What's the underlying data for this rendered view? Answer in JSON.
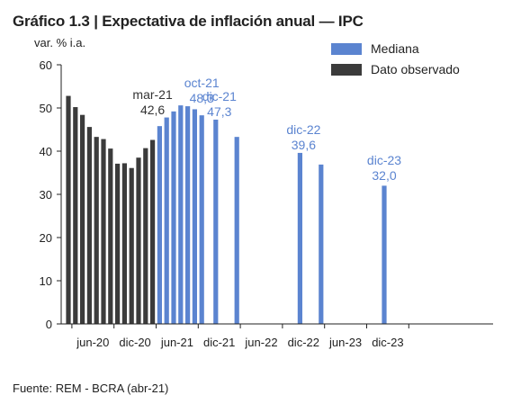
{
  "title": "Gráfico 1.3 | Expectativa de inflación anual — IPC",
  "source": "Fuente: REM - BCRA (abr-21)",
  "colors": {
    "observed": "#3b3b3b",
    "median": "#5b84d0",
    "axis": "#222222",
    "median_text": "#5b84d0",
    "observed_text": "#333333"
  },
  "chart_data": {
    "type": "bar",
    "ylabel": "var. % i.a.",
    "ylim": [
      0,
      60
    ],
    "yticks": [
      0,
      10,
      20,
      30,
      40,
      50,
      60
    ],
    "xtick_labels": [
      "jun-20",
      "dic-20",
      "jun-21",
      "dic-21",
      "jun-22",
      "dic-22",
      "jun-23",
      "dic-23"
    ],
    "legend": {
      "position": "top-right",
      "entries": [
        "Mediana",
        "Dato observado"
      ]
    },
    "series": [
      {
        "name": "Dato observado",
        "points": [
          {
            "x": "mar-20",
            "y": 52.8
          },
          {
            "x": "abr-20",
            "y": 50.2
          },
          {
            "x": "may-20",
            "y": 48.4
          },
          {
            "x": "jun-20",
            "y": 45.6
          },
          {
            "x": "jul-20",
            "y": 43.3
          },
          {
            "x": "ago-20",
            "y": 42.8
          },
          {
            "x": "sep-20",
            "y": 40.6
          },
          {
            "x": "oct-20",
            "y": 37.1
          },
          {
            "x": "nov-20",
            "y": 37.2
          },
          {
            "x": "dic-20",
            "y": 36.1
          },
          {
            "x": "ene-21",
            "y": 38.5
          },
          {
            "x": "feb-21",
            "y": 40.7
          },
          {
            "x": "mar-21",
            "y": 42.6
          }
        ]
      },
      {
        "name": "Mediana",
        "points": [
          {
            "x": "abr-21",
            "y": 45.8
          },
          {
            "x": "may-21",
            "y": 47.8
          },
          {
            "x": "jun-21",
            "y": 49.2
          },
          {
            "x": "jul-21",
            "y": 50.6
          },
          {
            "x": "ago-21",
            "y": 50.4
          },
          {
            "x": "sep-21",
            "y": 49.7
          },
          {
            "x": "oct-21",
            "y": 48.3
          },
          {
            "x": "dic-21",
            "y": 47.3
          },
          {
            "x": "mar-22",
            "y": 43.3
          },
          {
            "x": "dic-22",
            "y": 39.6
          },
          {
            "x": "mar-23",
            "y": 36.9
          },
          {
            "x": "dic-23",
            "y": 32.0
          }
        ]
      }
    ],
    "annotations": [
      {
        "x": "mar-21",
        "lines": [
          "mar-21",
          "42,6"
        ],
        "series": "Dato observado"
      },
      {
        "x": "oct-21",
        "lines": [
          "oct-21",
          "48,3"
        ],
        "series": "Mediana"
      },
      {
        "x": "dic-21",
        "lines": [
          "dic-21",
          "47,3"
        ],
        "series": "Mediana"
      },
      {
        "x": "dic-22",
        "lines": [
          "dic-22",
          "39,6"
        ],
        "series": "Mediana"
      },
      {
        "x": "dic-23",
        "lines": [
          "dic-23",
          "32,0"
        ],
        "series": "Mediana"
      }
    ]
  }
}
